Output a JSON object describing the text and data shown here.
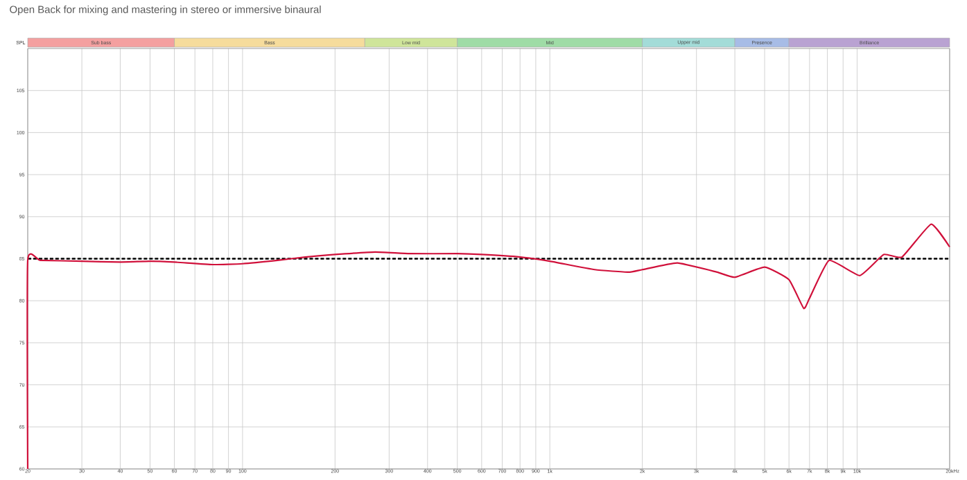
{
  "chart_data": [
    {
      "type": "bar",
      "orientation": "horizontal",
      "categories": [
        null
      ],
      "log": "x",
      "xlim": [
        20,
        20000
      ],
      "series": [
        {
          "name": "Sub bass",
          "color": "#f4a0a0",
          "base": [
            20
          ],
          "values": [
            40
          ]
        },
        {
          "name": "Bass",
          "color": "#f6dc9c",
          "base": [
            60
          ],
          "values": [
            190
          ]
        },
        {
          "name": "Low mid",
          "color": "#cfe59a",
          "base": [
            250
          ],
          "values": [
            250
          ]
        },
        {
          "name": "Mid",
          "color": "#9fdca6",
          "base": [
            500
          ],
          "values": [
            1500
          ]
        },
        {
          "name": "Upper mid",
          "color": "#a3dcd8",
          "base": [
            2000
          ],
          "values": [
            2000
          ]
        },
        {
          "name": "Presence",
          "color": "#a7bce6",
          "base": [
            4000
          ],
          "values": [
            2000
          ]
        },
        {
          "name": "Brilliance",
          "color": "#b9a2d2",
          "base": [
            6000
          ],
          "values": [
            14000
          ]
        }
      ]
    },
    {
      "type": "line",
      "title": "Open Back for mixing and mastering in stereo or immersive binaural",
      "ylabel": "SPL",
      "xlabel": "Hz",
      "x": [
        20,
        20,
        22,
        30,
        40,
        50,
        60,
        80,
        100,
        130,
        160,
        200,
        270,
        350,
        500,
        600,
        800,
        1000,
        1400,
        1800,
        2000,
        2600,
        3500,
        4000,
        5000,
        6000,
        6700,
        7000,
        8100,
        10200,
        12200,
        14000,
        17400,
        20000
      ],
      "series": [
        {
          "color": "#d0103a",
          "values": [
            60,
            84.8,
            84.8,
            84.7,
            84.6,
            84.7,
            84.6,
            84.3,
            84.4,
            84.8,
            85.2,
            85.5,
            85.8,
            85.6,
            85.6,
            85.5,
            85.2,
            84.7,
            83.7,
            83.4,
            83.7,
            84.5,
            83.4,
            82.8,
            84.0,
            82.5,
            79.1,
            80.3,
            84.8,
            83.0,
            85.5,
            85.2,
            89.1,
            86.4
          ]
        }
      ],
      "log": "x",
      "xlim": [
        20,
        20000
      ],
      "ylim": [
        60,
        110
      ],
      "xticks": [
        20,
        30,
        40,
        50,
        60,
        70,
        80,
        90,
        100,
        200,
        300,
        400,
        500,
        600,
        700,
        800,
        900,
        {
          "value": 1000,
          "label": "1k"
        },
        {
          "value": 2000,
          "label": "2k"
        },
        {
          "value": 3000,
          "label": "3k"
        },
        {
          "value": 4000,
          "label": "4k"
        },
        {
          "value": 5000,
          "label": "5k"
        },
        {
          "value": 6000,
          "label": "6k"
        },
        {
          "value": 7000,
          "label": "7k"
        },
        {
          "value": 8000,
          "label": "8k"
        },
        {
          "value": 9000,
          "label": "9k"
        },
        {
          "value": 10000,
          "label": "10k"
        },
        {
          "value": 20000,
          "label": "20k"
        }
      ],
      "yticks": [
        60,
        65,
        70,
        75,
        80,
        85,
        90,
        95,
        100,
        105
      ],
      "grid": true,
      "marker": "none",
      "ref_lines": [
        {
          "axis": "y",
          "value": 85,
          "color": "#000000",
          "line_style": "dashed"
        }
      ]
    }
  ]
}
